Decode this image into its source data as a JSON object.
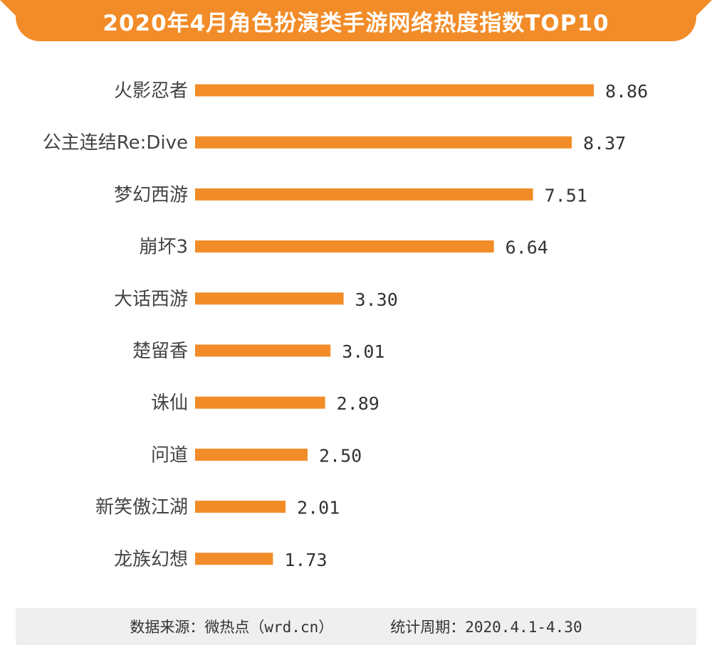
{
  "title": "2020年4月角色扮演类手游网络热度指数TOP10",
  "footer": {
    "source": "数据来源：微热点（wrd.cn）",
    "period": "统计周期：2020.4.1-4.30"
  },
  "colors": {
    "accent": "#f28c28",
    "label": "#444444",
    "value": "#333333"
  },
  "chart_data": {
    "type": "bar",
    "orientation": "horizontal",
    "title": "2020年4月角色扮演类手游网络热度指数TOP10",
    "xlabel": "",
    "ylabel": "",
    "xlim": [
      0,
      10
    ],
    "grid": false,
    "categories": [
      "火影忍者",
      "公主连结Re:Dive",
      "梦幻西游",
      "崩坏3",
      "大话西游",
      "楚留香",
      "诛仙",
      "问道",
      "新笑傲江湖",
      "龙族幻想"
    ],
    "values": [
      8.86,
      8.37,
      7.51,
      6.64,
      3.3,
      3.01,
      2.89,
      2.5,
      2.01,
      1.73
    ],
    "value_labels": [
      "8.86",
      "8.37",
      "7.51",
      "6.64",
      "3.30",
      "3.01",
      "2.89",
      "2.50",
      "2.01",
      "1.73"
    ]
  }
}
